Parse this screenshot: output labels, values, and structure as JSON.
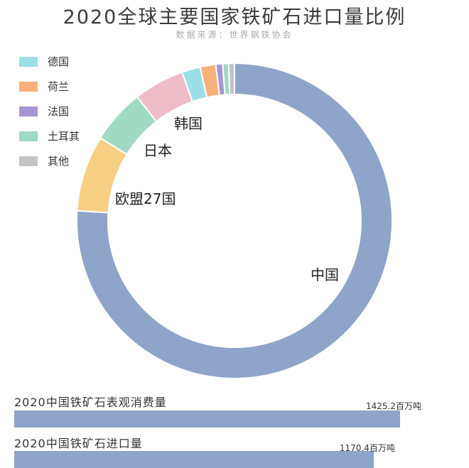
{
  "chart_data": [
    {
      "type": "pie",
      "title": "2020全球主要国家铁矿石进口量比例",
      "subtitle": "数据来源：世界钢铁协会",
      "donut": true,
      "legend_placement": "top-left",
      "slices": [
        {
          "name": "中国",
          "value": 76.1,
          "color": "#8ea4c8"
        },
        {
          "name": "欧盟27国",
          "value": 7.8,
          "color": "#f7cf82"
        },
        {
          "name": "日本",
          "value": 5.6,
          "color": "#9fdac3"
        },
        {
          "name": "韩国",
          "value": 5.2,
          "color": "#eebcc6"
        },
        {
          "name": "德国",
          "value": 1.9,
          "color": "#9adfe8"
        },
        {
          "name": "荷兰",
          "value": 1.6,
          "color": "#f8b07a"
        },
        {
          "name": "法国",
          "value": 0.7,
          "color": "#a796d2"
        },
        {
          "name": "土耳其",
          "value": 0.6,
          "color": "#9fdac3"
        },
        {
          "name": "其他",
          "value": 0.6,
          "color": "#c4c4c4"
        }
      ],
      "legend": [
        {
          "name": "德国",
          "color": "#9adfe8"
        },
        {
          "name": "荷兰",
          "color": "#f8b07a"
        },
        {
          "name": "法国",
          "color": "#a796d2"
        },
        {
          "name": "土耳其",
          "color": "#9fdac3"
        },
        {
          "name": "其他",
          "color": "#c4c4c4"
        }
      ],
      "slice_labels": [
        "中国",
        "欧盟27国",
        "日本",
        "韩国"
      ]
    },
    {
      "type": "bar",
      "orientation": "horizontal",
      "unit": "百万吨",
      "color": "#8ea4c8",
      "bars": [
        {
          "label": "2020中国铁矿石表观消费量",
          "value": 1425.2,
          "value_label": "1425.2百万吨"
        },
        {
          "label": "2020中国铁矿石进口量",
          "value": 1170.4,
          "value_label": "1170.4百万吨"
        }
      ]
    }
  ]
}
